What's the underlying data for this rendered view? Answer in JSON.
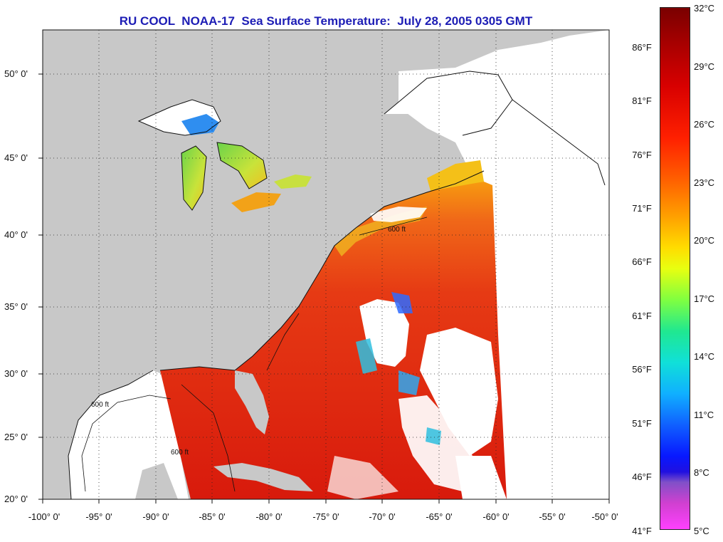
{
  "title": "RU COOL  NOAA-17  Sea Surface Temperature:  July 28, 2005 0305 GMT",
  "lat_labels": [
    "50° 0'",
    "45° 0'",
    "40° 0'",
    "35° 0'",
    "30° 0'",
    "25° 0'",
    "20° 0'"
  ],
  "lon_labels": [
    "-100° 0'",
    "-95° 0'",
    "-90° 0'",
    "-85° 0'",
    "-80° 0'",
    "-75° 0'",
    "-70° 0'",
    "-65° 0'",
    "-60° 0'",
    "-55° 0'",
    "-50° 0'"
  ],
  "contour_label": "600 ft",
  "colorbar": {
    "fahrenheit": [
      "86°F",
      "81°F",
      "76°F",
      "71°F",
      "66°F",
      "61°F",
      "56°F",
      "51°F",
      "46°F",
      "41°F"
    ],
    "celsius": [
      "32°C",
      "29°C",
      "26°C",
      "23°C",
      "20°C",
      "17°C",
      "14°C",
      "11°C",
      "8°C",
      "5°C"
    ]
  },
  "colors": {
    "land": "#c8c8c8",
    "no_data": "#ffffff",
    "title": "#1d1db5",
    "warm": "#e81c0c",
    "hot": "#cc1408"
  }
}
